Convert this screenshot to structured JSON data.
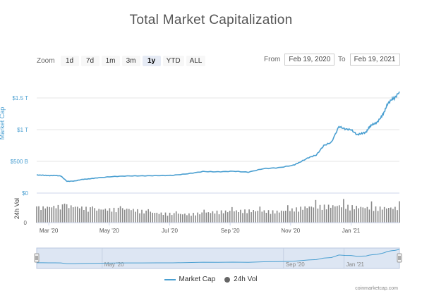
{
  "title": "Total Market Capitalization",
  "zoom": {
    "label": "Zoom",
    "buttons": [
      "1d",
      "7d",
      "1m",
      "3m",
      "1y",
      "YTD",
      "ALL"
    ],
    "active": "1y"
  },
  "range": {
    "from_label": "From",
    "from_value": "Feb 19, 2020",
    "to_label": "To",
    "to_value": "Feb 19, 2021"
  },
  "credit": "coinmarketcap.com",
  "colors": {
    "market_cap": "#4a9fd1",
    "volume": "#888888",
    "navigator_fill": "#dde6f3",
    "navigator_mask": "#c9d6ea"
  },
  "chart_data": {
    "type": "line",
    "x_axis": {
      "tick_labels": [
        "Mar '20",
        "May '20",
        "Jul '20",
        "Sep '20",
        "Nov '20",
        "Jan '21"
      ],
      "range": [
        "Feb 19, 2020",
        "Feb 19, 2021"
      ]
    },
    "y_axis": {
      "label": "Market Cap",
      "tick_labels": [
        "$0",
        "$500 B",
        "$1 T",
        "$1.5 T"
      ],
      "ticks": [
        0,
        500,
        1000,
        1500
      ],
      "unit": "B USD",
      "range": [
        0,
        1600
      ]
    },
    "volume_axis": {
      "label": "24h Vol",
      "tick_labels": [
        "0"
      ]
    },
    "legend": [
      {
        "name": "Market Cap",
        "marker": "line"
      },
      {
        "name": "24h Vol",
        "marker": "circle"
      }
    ],
    "navigator_labels": [
      "May '20",
      "Sep '20",
      "Jan '21"
    ],
    "series": [
      {
        "name": "Market Cap",
        "x_month_offset": [
          0,
          0.2,
          0.4,
          0.6,
          0.8,
          1.0,
          1.25,
          1.5,
          1.75,
          2.0,
          2.5,
          3.0,
          3.5,
          4.0,
          4.5,
          5.0,
          5.5,
          6.0,
          6.5,
          7.0,
          7.5,
          8.0,
          8.5,
          8.7,
          9.0,
          9.25,
          9.5,
          9.75,
          10.0,
          10.2,
          10.4,
          10.6,
          10.75,
          10.9,
          11.0,
          11.1,
          11.25,
          11.4,
          11.5,
          11.6,
          11.75,
          11.85,
          12.0
        ],
        "values": [
          285,
          282,
          275,
          278,
          270,
          185,
          190,
          215,
          225,
          240,
          260,
          270,
          272,
          275,
          280,
          305,
          340,
          335,
          345,
          330,
          385,
          400,
          440,
          485,
          560,
          600,
          750,
          800,
          1050,
          1010,
          1000,
          920,
          940,
          960,
          1040,
          1080,
          1110,
          1200,
          1280,
          1400,
          1480,
          1500,
          1600
        ]
      },
      {
        "name": "24h Vol",
        "x_month_offset": [
          0,
          1,
          2,
          3,
          4,
          5,
          6,
          7,
          8,
          9,
          10,
          11,
          12
        ],
        "values": [
          140,
          160,
          125,
          130,
          90,
          80,
          105,
          115,
          105,
          150,
          160,
          140,
          140
        ],
        "unit": "B USD (relative)"
      }
    ]
  }
}
